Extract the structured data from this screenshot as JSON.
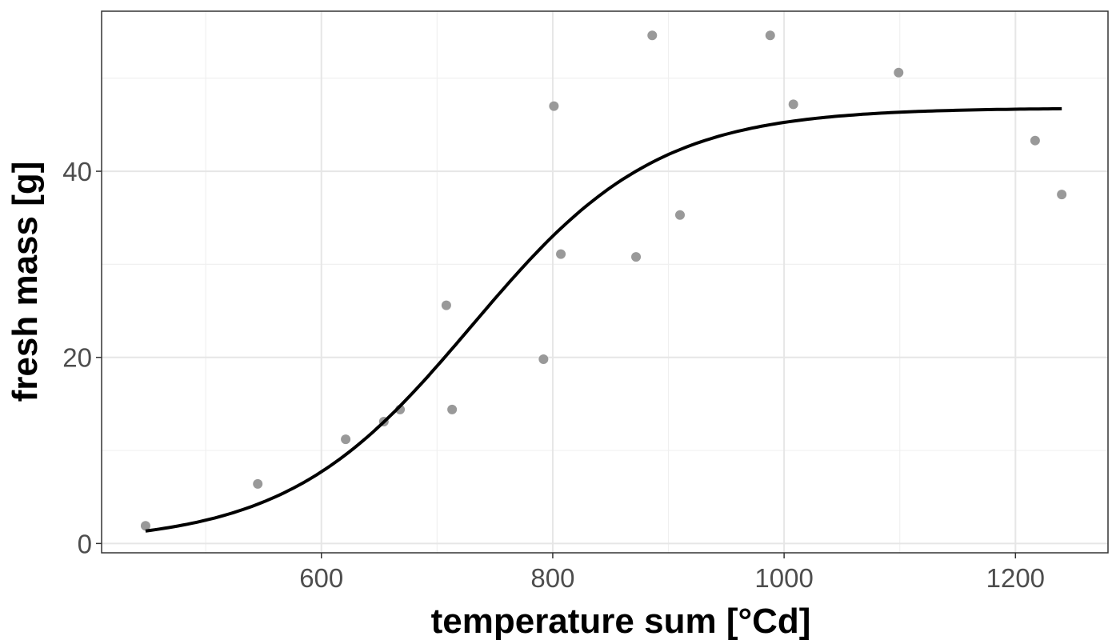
{
  "chart_data": {
    "type": "scatter",
    "title": "",
    "xlabel": "temperature sum [°Cd]",
    "ylabel": "fresh mass [g]",
    "xlim": [
      410,
      1280
    ],
    "ylim": [
      -1,
      57.2
    ],
    "x_ticks": [
      600,
      800,
      1000,
      1200
    ],
    "y_ticks": [
      0,
      20,
      40
    ],
    "x_tick_labels": [
      "600",
      "800",
      "1000",
      "1200"
    ],
    "y_tick_labels": [
      "0",
      "20",
      "40"
    ],
    "grid": true,
    "point_color": "#999999",
    "line_color": "#000000",
    "points": [
      {
        "x": 448,
        "y": 1.9
      },
      {
        "x": 545,
        "y": 6.4
      },
      {
        "x": 621,
        "y": 11.2
      },
      {
        "x": 654,
        "y": 13.1
      },
      {
        "x": 668,
        "y": 14.4
      },
      {
        "x": 708,
        "y": 25.6
      },
      {
        "x": 713,
        "y": 14.4
      },
      {
        "x": 792,
        "y": 19.8
      },
      {
        "x": 801,
        "y": 47.0
      },
      {
        "x": 807,
        "y": 31.1
      },
      {
        "x": 872,
        "y": 30.8
      },
      {
        "x": 886,
        "y": 54.6
      },
      {
        "x": 910,
        "y": 35.3
      },
      {
        "x": 988,
        "y": 54.6
      },
      {
        "x": 1008,
        "y": 47.2
      },
      {
        "x": 1099,
        "y": 50.6
      },
      {
        "x": 1217,
        "y": 43.3
      },
      {
        "x": 1240,
        "y": 37.5
      }
    ],
    "fit_curve": {
      "model": "logistic",
      "asymptote": 46.8,
      "rate": 0.01249,
      "midpoint": 730,
      "x_range": [
        448,
        1240
      ]
    }
  }
}
